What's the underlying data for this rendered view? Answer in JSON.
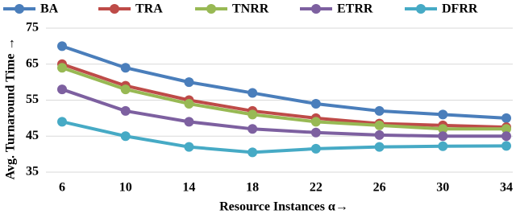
{
  "chart_data": {
    "type": "line",
    "x_label": "Resource Instances α→",
    "y_label": "Avg. Turnaround Time →",
    "x": [
      6,
      10,
      14,
      18,
      22,
      26,
      30,
      34
    ],
    "xlim": [
      6,
      34
    ],
    "xticks": [
      6,
      10,
      14,
      18,
      22,
      26,
      30,
      34
    ],
    "ylim": [
      35,
      75
    ],
    "yticks": [
      35,
      45,
      55,
      65,
      75
    ],
    "grid": true,
    "legend": "top",
    "series": [
      {
        "name": "BA",
        "color": "#4a7ebb",
        "values": [
          70,
          64,
          60,
          57,
          54,
          52,
          51,
          50
        ]
      },
      {
        "name": "TRA",
        "color": "#be4b48",
        "values": [
          65,
          59,
          55,
          52,
          50,
          48.5,
          48,
          47.5
        ]
      },
      {
        "name": "TNRR",
        "color": "#98b954",
        "values": [
          64,
          58,
          54,
          51,
          49,
          48,
          47,
          47
        ]
      },
      {
        "name": "ETRR",
        "color": "#7d60a0",
        "values": [
          58,
          52,
          49,
          47,
          46,
          45.3,
          45,
          45
        ]
      },
      {
        "name": "DFRR",
        "color": "#46aac5",
        "values": [
          49,
          45,
          42,
          40.5,
          41.5,
          42,
          42.2,
          42.3
        ]
      }
    ]
  }
}
